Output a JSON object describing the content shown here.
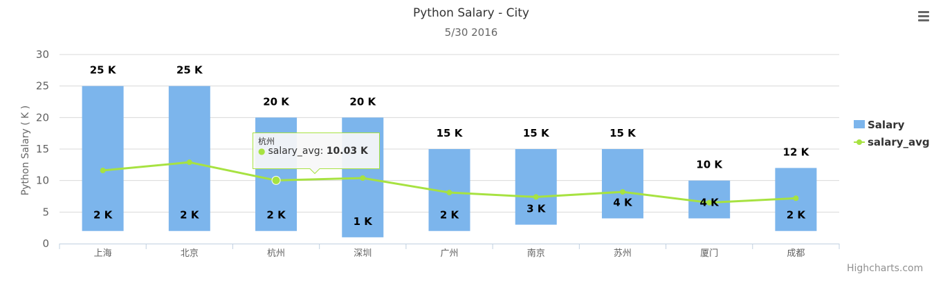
{
  "chart_data": {
    "type": "bar",
    "title": "Python Salary - City",
    "subtitle": "5/30 2016",
    "xlabel": "",
    "ylabel": "Python Salary ( K )",
    "ylim": [
      0,
      30
    ],
    "yticks": [
      "0",
      "5",
      "10",
      "15",
      "20",
      "25",
      "30"
    ],
    "grid": true,
    "legend_position": "right",
    "categories": [
      "上海",
      "北京",
      "杭州",
      "深圳",
      "广州",
      "南京",
      "苏州",
      "厦门",
      "成都"
    ],
    "series": [
      {
        "name": "Salary",
        "kind": "columnrange",
        "color": "#7cb5ec",
        "low": [
          2,
          2,
          2,
          1,
          2,
          3,
          4,
          4,
          2
        ],
        "high": [
          25,
          25,
          20,
          20,
          15,
          15,
          15,
          10,
          12
        ],
        "low_labels": [
          "2 K",
          "2 K",
          "2 K",
          "1 K",
          "2 K",
          "3 K",
          "4 K",
          "4 K",
          "2 K"
        ],
        "high_labels": [
          "25 K",
          "25 K",
          "20 K",
          "20 K",
          "15 K",
          "15 K",
          "15 K",
          "10 K",
          "12 K"
        ]
      },
      {
        "name": "salary_avg",
        "kind": "line",
        "color": "#a7e241",
        "values": [
          11.6,
          12.9,
          10.03,
          10.4,
          8.1,
          7.4,
          8.2,
          6.5,
          7.2
        ]
      }
    ]
  },
  "tooltip": {
    "category": "杭州",
    "series_name": "salary_avg",
    "value_text": "10.03 K"
  },
  "menu": {
    "icon": "hamburger-menu-icon"
  },
  "credits": "Highcharts.com"
}
